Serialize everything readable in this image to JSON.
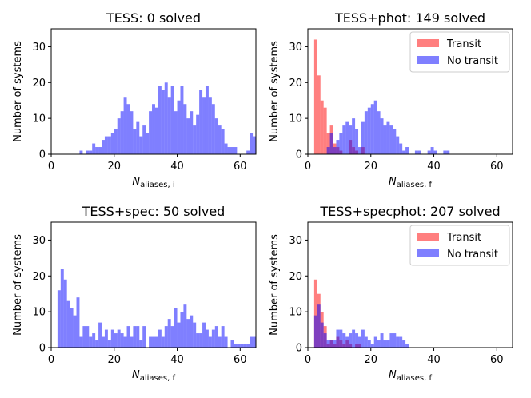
{
  "figure": {
    "colors": {
      "transit": "#ff0000",
      "no_transit": "#0000ff",
      "overlap": "#800080",
      "bar_alpha": 0.5
    }
  },
  "chart_data": [
    {
      "type": "histogram",
      "title": "TESS: 0 solved",
      "xlabel_main": "N",
      "xlabel_sub": "aliases, i",
      "ylabel": "Number of systems",
      "xlim": [
        0,
        65
      ],
      "ylim": [
        0,
        35
      ],
      "xticks": [
        0,
        20,
        40,
        60
      ],
      "yticks": [
        0,
        10,
        20,
        30
      ],
      "bin_width": 1,
      "legend": null,
      "series": [
        {
          "name": "No transit",
          "color": "#0000ff",
          "values": [
            [
              9,
              1
            ],
            [
              10,
              0
            ],
            [
              11,
              1
            ],
            [
              12,
              1
            ],
            [
              13,
              3
            ],
            [
              14,
              2
            ],
            [
              15,
              2
            ],
            [
              16,
              4
            ],
            [
              17,
              5
            ],
            [
              18,
              5
            ],
            [
              19,
              6
            ],
            [
              20,
              7
            ],
            [
              21,
              10
            ],
            [
              22,
              12
            ],
            [
              23,
              16
            ],
            [
              24,
              14
            ],
            [
              25,
              12
            ],
            [
              26,
              7
            ],
            [
              27,
              9
            ],
            [
              28,
              5
            ],
            [
              29,
              8
            ],
            [
              30,
              6
            ],
            [
              31,
              12
            ],
            [
              32,
              14
            ],
            [
              33,
              13
            ],
            [
              34,
              19
            ],
            [
              35,
              18
            ],
            [
              36,
              20
            ],
            [
              37,
              16
            ],
            [
              38,
              19
            ],
            [
              39,
              12
            ],
            [
              40,
              15
            ],
            [
              41,
              19
            ],
            [
              42,
              14
            ],
            [
              43,
              10
            ],
            [
              44,
              12
            ],
            [
              45,
              8
            ],
            [
              46,
              11
            ],
            [
              47,
              18
            ],
            [
              48,
              16
            ],
            [
              49,
              19
            ],
            [
              50,
              16
            ],
            [
              51,
              14
            ],
            [
              52,
              10
            ],
            [
              53,
              8
            ],
            [
              54,
              7
            ],
            [
              55,
              3
            ],
            [
              56,
              2
            ],
            [
              57,
              2
            ],
            [
              58,
              2
            ],
            [
              59,
              0
            ],
            [
              60,
              0
            ],
            [
              61,
              0
            ],
            [
              62,
              1
            ],
            [
              63,
              6
            ],
            [
              64,
              5
            ]
          ]
        }
      ]
    },
    {
      "type": "histogram",
      "title": "TESS+phot: 149 solved",
      "xlabel_main": "N",
      "xlabel_sub": "aliases, f",
      "ylabel": "Number of systems",
      "xlim": [
        0,
        65
      ],
      "ylim": [
        0,
        35
      ],
      "xticks": [
        0,
        20,
        40,
        60
      ],
      "yticks": [
        0,
        10,
        20,
        30
      ],
      "bin_width": 1,
      "legend": [
        "Transit",
        "No transit"
      ],
      "series": [
        {
          "name": "Transit",
          "color": "#ff0000",
          "values": [
            [
              2,
              32
            ],
            [
              3,
              22
            ],
            [
              4,
              15
            ],
            [
              5,
              13
            ],
            [
              6,
              6
            ],
            [
              7,
              8
            ],
            [
              8,
              3
            ],
            [
              9,
              2
            ],
            [
              10,
              1
            ],
            [
              11,
              0
            ],
            [
              12,
              0
            ],
            [
              13,
              4
            ],
            [
              14,
              2
            ],
            [
              15,
              1
            ],
            [
              16,
              0
            ],
            [
              17,
              2
            ]
          ]
        },
        {
          "name": "No transit",
          "color": "#0000ff",
          "values": [
            [
              6,
              2
            ],
            [
              7,
              6
            ],
            [
              8,
              2
            ],
            [
              9,
              4
            ],
            [
              10,
              6
            ],
            [
              11,
              8
            ],
            [
              12,
              9
            ],
            [
              13,
              8
            ],
            [
              14,
              10
            ],
            [
              15,
              7
            ],
            [
              16,
              2
            ],
            [
              17,
              9
            ],
            [
              18,
              12
            ],
            [
              19,
              13
            ],
            [
              20,
              14
            ],
            [
              21,
              15
            ],
            [
              22,
              12
            ],
            [
              23,
              10
            ],
            [
              24,
              8
            ],
            [
              25,
              9
            ],
            [
              26,
              8
            ],
            [
              27,
              7
            ],
            [
              28,
              5
            ],
            [
              29,
              3
            ],
            [
              30,
              1
            ],
            [
              31,
              2
            ],
            [
              32,
              0
            ],
            [
              33,
              0
            ],
            [
              34,
              1
            ],
            [
              35,
              1
            ],
            [
              36,
              0
            ],
            [
              37,
              0
            ],
            [
              38,
              1
            ],
            [
              39,
              2
            ],
            [
              40,
              1
            ],
            [
              41,
              0
            ],
            [
              42,
              0
            ],
            [
              43,
              1
            ],
            [
              44,
              1
            ]
          ]
        }
      ]
    },
    {
      "type": "histogram",
      "title": "TESS+spec: 50 solved",
      "xlabel_main": "N",
      "xlabel_sub": "aliases, f",
      "ylabel": "Number of systems",
      "xlim": [
        0,
        65
      ],
      "ylim": [
        0,
        35
      ],
      "xticks": [
        0,
        20,
        40,
        60
      ],
      "yticks": [
        0,
        10,
        20,
        30
      ],
      "bin_width": 1,
      "legend": null,
      "series": [
        {
          "name": "No transit",
          "color": "#0000ff",
          "values": [
            [
              2,
              16
            ],
            [
              3,
              22
            ],
            [
              4,
              19
            ],
            [
              5,
              13
            ],
            [
              6,
              11
            ],
            [
              7,
              9
            ],
            [
              8,
              14
            ],
            [
              9,
              3
            ],
            [
              10,
              6
            ],
            [
              11,
              6
            ],
            [
              12,
              3
            ],
            [
              13,
              4
            ],
            [
              14,
              2
            ],
            [
              15,
              7
            ],
            [
              16,
              3
            ],
            [
              17,
              5
            ],
            [
              18,
              2
            ],
            [
              19,
              5
            ],
            [
              20,
              4
            ],
            [
              21,
              5
            ],
            [
              22,
              4
            ],
            [
              23,
              3
            ],
            [
              24,
              6
            ],
            [
              25,
              3
            ],
            [
              26,
              6
            ],
            [
              27,
              6
            ],
            [
              28,
              2
            ],
            [
              29,
              6
            ],
            [
              30,
              0
            ],
            [
              31,
              3
            ],
            [
              32,
              3
            ],
            [
              33,
              3
            ],
            [
              34,
              5
            ],
            [
              35,
              3
            ],
            [
              36,
              6
            ],
            [
              37,
              8
            ],
            [
              38,
              6
            ],
            [
              39,
              11
            ],
            [
              40,
              7
            ],
            [
              41,
              10
            ],
            [
              42,
              12
            ],
            [
              43,
              8
            ],
            [
              44,
              9
            ],
            [
              45,
              7
            ],
            [
              46,
              4
            ],
            [
              47,
              4
            ],
            [
              48,
              7
            ],
            [
              49,
              5
            ],
            [
              50,
              3
            ],
            [
              51,
              5
            ],
            [
              52,
              6
            ],
            [
              53,
              3
            ],
            [
              54,
              6
            ],
            [
              55,
              3
            ],
            [
              56,
              0
            ],
            [
              57,
              2
            ],
            [
              58,
              1
            ],
            [
              59,
              1
            ],
            [
              60,
              1
            ],
            [
              61,
              1
            ],
            [
              62,
              1
            ],
            [
              63,
              3
            ],
            [
              64,
              3
            ]
          ]
        }
      ]
    },
    {
      "type": "histogram",
      "title": "TESS+specphot: 207 solved",
      "xlabel_main": "N",
      "xlabel_sub": "aliases, f",
      "ylabel": "Number of systems",
      "xlim": [
        0,
        65
      ],
      "ylim": [
        0,
        35
      ],
      "xticks": [
        0,
        20,
        40,
        60
      ],
      "yticks": [
        0,
        10,
        20,
        30
      ],
      "bin_width": 1,
      "legend": [
        "Transit",
        "No transit"
      ],
      "series": [
        {
          "name": "Transit",
          "color": "#ff0000",
          "values": [
            [
              2,
              19
            ],
            [
              3,
              15
            ],
            [
              4,
              10
            ],
            [
              5,
              6
            ],
            [
              6,
              1
            ],
            [
              7,
              2
            ],
            [
              8,
              1
            ],
            [
              9,
              3
            ],
            [
              10,
              2
            ],
            [
              11,
              1
            ],
            [
              12,
              2
            ],
            [
              13,
              1
            ],
            [
              14,
              0
            ],
            [
              15,
              1
            ],
            [
              16,
              1
            ]
          ]
        },
        {
          "name": "No transit",
          "color": "#0000ff",
          "values": [
            [
              2,
              9
            ],
            [
              3,
              12
            ],
            [
              4,
              7
            ],
            [
              5,
              4
            ],
            [
              6,
              2
            ],
            [
              7,
              2
            ],
            [
              8,
              2
            ],
            [
              9,
              5
            ],
            [
              10,
              5
            ],
            [
              11,
              4
            ],
            [
              12,
              3
            ],
            [
              13,
              4
            ],
            [
              14,
              5
            ],
            [
              15,
              4
            ],
            [
              16,
              3
            ],
            [
              17,
              5
            ],
            [
              18,
              3
            ],
            [
              19,
              2
            ],
            [
              20,
              1
            ],
            [
              21,
              3
            ],
            [
              22,
              2
            ],
            [
              23,
              4
            ],
            [
              24,
              2
            ],
            [
              25,
              2
            ],
            [
              26,
              4
            ],
            [
              27,
              4
            ],
            [
              28,
              3
            ],
            [
              29,
              3
            ],
            [
              30,
              2
            ],
            [
              31,
              1
            ]
          ]
        }
      ]
    }
  ]
}
